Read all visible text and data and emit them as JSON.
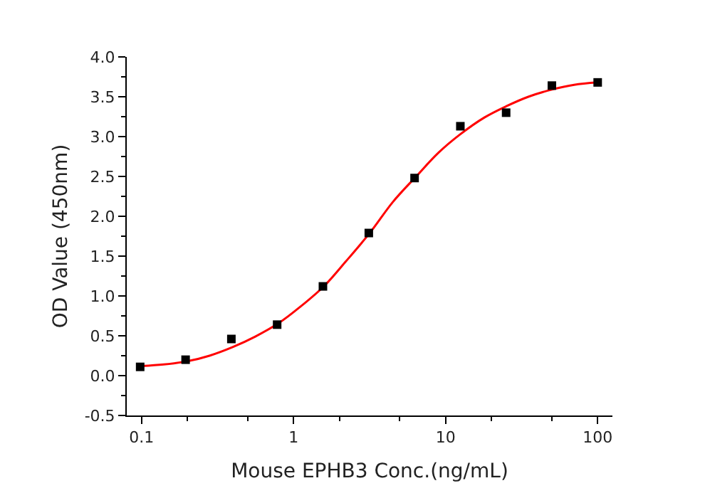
{
  "chart_data": {
    "type": "scatter",
    "xlabel": "Mouse EPHB3 Conc.(ng/mL)",
    "ylabel": "OD Value (450nm)",
    "log": "x",
    "xlim": [
      0.08,
      125
    ],
    "xticks": [
      0.1,
      1,
      10,
      100
    ],
    "ylim": [
      -0.5,
      4.0
    ],
    "yticks": [
      {
        "value": -0.5,
        "label": "-0.5"
      },
      {
        "value": 0,
        "label": "0.0"
      },
      {
        "value": 0.5,
        "label": "0.5"
      },
      {
        "value": 1,
        "label": "1.0"
      },
      {
        "value": 1.5,
        "label": "1.5"
      },
      {
        "value": 2,
        "label": "2.0"
      },
      {
        "value": 2.5,
        "label": "2.5"
      },
      {
        "value": 3,
        "label": "3.0"
      },
      {
        "value": 3.5,
        "label": "3.5"
      },
      {
        "value": 4,
        "label": "4.0"
      }
    ],
    "series": [
      {
        "type": "line",
        "color": "#ff0000",
        "marker": "none",
        "line_style": "solid",
        "x": [
          0.1,
          0.14,
          0.2,
          0.28,
          0.4,
          0.56,
          0.8,
          1.1,
          1.6,
          2.2,
          3.2,
          4.5,
          6.4,
          9,
          12.5,
          18,
          25,
          35,
          50,
          70,
          100
        ],
        "values": [
          0.12,
          0.14,
          0.18,
          0.25,
          0.36,
          0.49,
          0.66,
          0.86,
          1.13,
          1.43,
          1.8,
          2.18,
          2.5,
          2.8,
          3.03,
          3.24,
          3.38,
          3.5,
          3.59,
          3.65,
          3.68
        ]
      },
      {
        "type": "scatter",
        "color": "#000000",
        "marker": "square",
        "x": [
          0.098,
          0.195,
          0.39,
          0.78,
          1.56,
          3.125,
          6.25,
          12.5,
          25,
          50,
          100
        ],
        "values": [
          0.11,
          0.2,
          0.46,
          0.64,
          1.12,
          1.79,
          2.48,
          3.13,
          3.3,
          3.64,
          3.68
        ]
      }
    ]
  }
}
